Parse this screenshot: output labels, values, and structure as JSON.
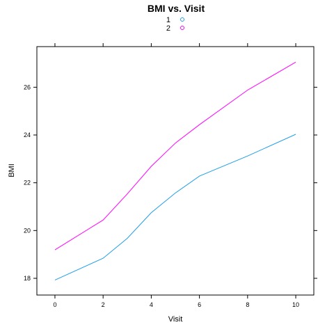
{
  "chart_data": {
    "type": "line",
    "title": "BMI vs. Visit",
    "xlabel": "Visit",
    "ylabel": "BMI",
    "xlim": [
      -0.75,
      10.75
    ],
    "ylim": [
      17.3,
      27.7
    ],
    "xticks": [
      0,
      2,
      4,
      6,
      8,
      10
    ],
    "yticks": [
      18,
      20,
      22,
      24,
      26
    ],
    "grid": false,
    "legend_position": "top",
    "series": [
      {
        "name": "1",
        "color": "#1f9ee8",
        "x": [
          0,
          2,
          3,
          4,
          5,
          6,
          8,
          10
        ],
        "values": [
          17.93,
          18.84,
          19.67,
          20.75,
          21.57,
          22.28,
          23.12,
          24.03
        ]
      },
      {
        "name": "2",
        "color": "#ff00ff",
        "x": [
          0,
          2,
          3,
          4,
          5,
          6,
          8,
          10
        ],
        "values": [
          19.19,
          20.44,
          21.53,
          22.69,
          23.66,
          24.43,
          25.88,
          27.05
        ]
      }
    ]
  }
}
